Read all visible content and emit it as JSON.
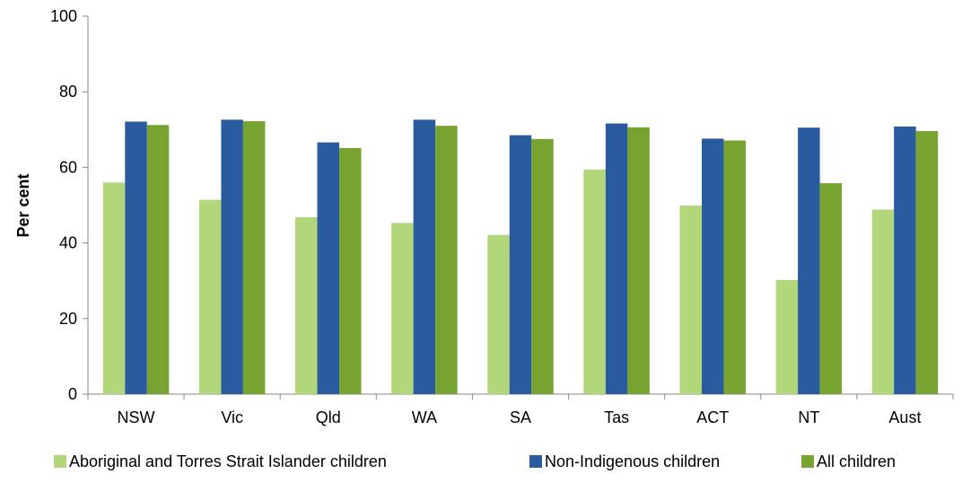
{
  "chart_data": {
    "type": "bar",
    "title": "",
    "xlabel": "",
    "ylabel": "Per cent",
    "ylim": [
      0,
      100
    ],
    "yticks": [
      0,
      20,
      40,
      60,
      80,
      100
    ],
    "grid": false,
    "legend_position": "bottom",
    "categories": [
      "NSW",
      "Vic",
      "Qld",
      "WA",
      "SA",
      "Tas",
      "ACT",
      "NT",
      "Aust"
    ],
    "series": [
      {
        "name": "Aboriginal and Torres Strait Islander children",
        "color": "#b2d67a",
        "values": [
          56,
          51.4,
          46.8,
          45.3,
          42.1,
          59.4,
          49.9,
          30.2,
          48.8
        ]
      },
      {
        "name": "Non-Indigenous children",
        "color": "#2a5b9e",
        "values": [
          72.1,
          72.6,
          66.6,
          72.6,
          68.5,
          71.6,
          67.6,
          70.5,
          70.8
        ]
      },
      {
        "name": "All children",
        "color": "#77a430",
        "values": [
          71.2,
          72.2,
          65.1,
          71,
          67.5,
          70.6,
          67.1,
          55.8,
          69.6
        ]
      }
    ]
  }
}
